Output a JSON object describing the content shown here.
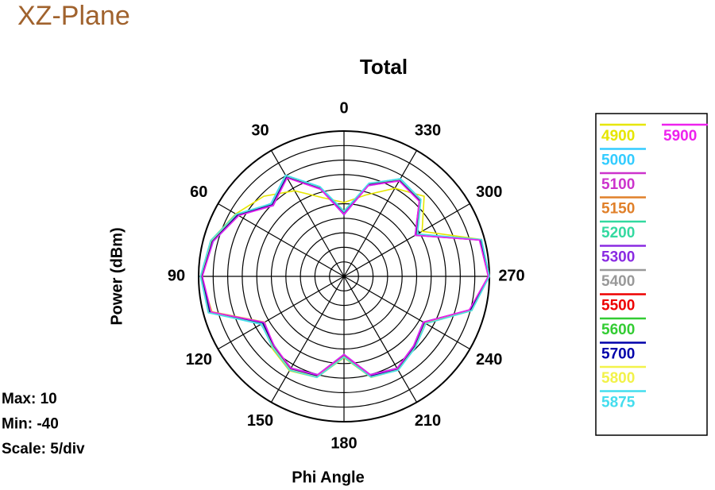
{
  "chart_data": {
    "type": "polar",
    "page_title": "XZ-Plane",
    "title": "Total",
    "ylabel": "Power  (dBm)",
    "xlabel": "Phi Angle",
    "annotations": [
      "Max: 10",
      "Min: -40",
      "Scale: 5/div"
    ],
    "angle_zero": "top",
    "angle_direction": "counterclockwise",
    "xticks": [
      0,
      30,
      60,
      90,
      120,
      150,
      180,
      210,
      240,
      270,
      300,
      330
    ],
    "ylim": [
      -40,
      10
    ],
    "yticks": [
      -40,
      -35,
      -30,
      -25,
      -20,
      -15,
      -10,
      -5,
      0,
      5,
      10
    ],
    "grid": true,
    "legend": "right",
    "x": [
      0,
      15,
      30,
      45,
      60,
      75,
      90,
      105,
      120,
      135,
      150,
      165,
      180,
      195,
      210,
      225,
      240,
      255,
      270,
      285,
      300,
      315,
      330,
      345
    ],
    "series": [
      {
        "name": "4900",
        "color": "#e6e600",
        "values": [
          -14.6,
          -12,
          -6,
          -1,
          3,
          7.5,
          9.2,
          7,
          -8.5,
          -5,
          -2.5,
          -4,
          -12,
          -4,
          -2.8,
          -5.5,
          -7.5,
          5.5,
          9.6,
          9,
          -9,
          -1,
          -5,
          -11
        ]
      },
      {
        "name": "5000",
        "color": "#33ccff",
        "values": [
          -17.5,
          -8,
          0.2,
          -4.5,
          1.8,
          6.5,
          8.8,
          8,
          -7,
          -6,
          -3.5,
          -4.8,
          -13,
          -4.8,
          -3.4,
          -6,
          -8.3,
          4.6,
          9.8,
          8.2,
          -11,
          -2.6,
          -1.2,
          -7
        ]
      },
      {
        "name": "5100",
        "color": "#cc33cc",
        "values": [
          -18.4,
          -8.9,
          -0.6,
          -5.4,
          2.6,
          7.2,
          9.3,
          7.5,
          -8.2,
          -5.4,
          -2.8,
          -4.2,
          -12.3,
          -4.2,
          -2.9,
          -5.5,
          -7.6,
          5.3,
          10,
          8.8,
          -11.7,
          -3.3,
          -1.9,
          -7.5
        ]
      },
      {
        "name": "5150",
        "color": "#e0802a",
        "values": [
          -18.2,
          -8.3,
          -0.1,
          -4.8,
          2.0,
          6.8,
          9.0,
          7.6,
          -7.5,
          -5.6,
          -3.0,
          -4.4,
          -12.5,
          -4.6,
          -3.2,
          -5.9,
          -8.1,
          4.9,
          9.9,
          8.5,
          -11.1,
          -2.9,
          -1.5,
          -7.0
        ]
      },
      {
        "name": "5200",
        "color": "#33d9a0",
        "values": [
          -17.8,
          -8.5,
          -0.3,
          -5.2,
          2.5,
          7.4,
          9.2,
          8.1,
          -7.6,
          -6.2,
          -3.3,
          -4.7,
          -12.8,
          -4.4,
          -3.0,
          -5.7,
          -7.8,
          5.2,
          10,
          8.7,
          -11.5,
          -3.1,
          -1.8,
          -7.4
        ]
      },
      {
        "name": "5300",
        "color": "#8a2be2",
        "values": [
          -18.8,
          -9.0,
          -0.8,
          -5.6,
          1.9,
          6.9,
          8.8,
          7.4,
          -8.4,
          -6.0,
          -3.6,
          -5.0,
          -13.2,
          -5.0,
          -3.5,
          -6.2,
          -8.5,
          4.7,
          9.7,
          8.3,
          -11.8,
          -3.4,
          -2.0,
          -7.7
        ]
      },
      {
        "name": "5400",
        "color": "#999999",
        "values": [
          -18.1,
          -8.7,
          -0.5,
          -5.1,
          2.2,
          7.0,
          9.0,
          7.7,
          -7.9,
          -5.9,
          -3.2,
          -4.6,
          -12.9,
          -4.5,
          -3.1,
          -5.8,
          -8.0,
          5.0,
          10,
          8.6,
          -11.4,
          -3.0,
          -1.7,
          -7.3
        ]
      },
      {
        "name": "5500",
        "color": "#ee0000",
        "values": [
          -17.9,
          -8.4,
          -0.2,
          -4.9,
          2.4,
          7.1,
          9.1,
          7.9,
          -7.7,
          -5.7,
          -3.0,
          -4.3,
          -12.6,
          -4.3,
          -3.0,
          -5.6,
          -7.9,
          5.1,
          10,
          8.7,
          -11.2,
          -2.9,
          -1.6,
          -7.1
        ]
      },
      {
        "name": "5600",
        "color": "#33cc33",
        "values": [
          -18.3,
          -8.8,
          -0.7,
          -5.3,
          2.1,
          6.8,
          8.9,
          7.6,
          -8.0,
          -5.8,
          -3.3,
          -4.6,
          -12.8,
          -4.7,
          -3.3,
          -6.0,
          -8.2,
          4.8,
          9.8,
          8.4,
          -11.6,
          -3.2,
          -1.9,
          -7.4
        ]
      },
      {
        "name": "5700",
        "color": "#0000aa",
        "values": [
          -18.5,
          -8.6,
          -0.4,
          -5.0,
          2.3,
          7.0,
          9.0,
          7.8,
          -7.8,
          -5.8,
          -3.1,
          -4.5,
          -12.7,
          -4.5,
          -3.1,
          -5.8,
          -8.0,
          5.0,
          10,
          8.6,
          -11.3,
          -3.0,
          -1.7,
          -7.2
        ]
      },
      {
        "name": "5800",
        "color": "#f2f24a",
        "values": [
          -17.6,
          -8.2,
          0.0,
          -4.7,
          2.7,
          7.3,
          9.3,
          8.2,
          -7.3,
          -5.5,
          -2.9,
          -4.2,
          -12.4,
          -4.2,
          -2.8,
          -5.4,
          -7.7,
          5.4,
          10,
          8.9,
          -10.9,
          -2.7,
          -1.4,
          -6.9
        ]
      },
      {
        "name": "5875",
        "color": "#44ddee",
        "values": [
          -17.7,
          -8.1,
          0.1,
          -4.6,
          2.8,
          7.5,
          9.4,
          8.3,
          -7.2,
          -5.3,
          -2.7,
          -4.0,
          -12.2,
          -4.1,
          -2.7,
          -5.3,
          -7.5,
          5.5,
          10,
          9.0,
          -10.8,
          -2.6,
          -1.3,
          -6.8
        ]
      },
      {
        "name": "5900",
        "color": "#ee22ee",
        "values": [
          -18.6,
          -8.9,
          -0.9,
          -5.5,
          1.8,
          6.6,
          8.7,
          7.3,
          -8.3,
          -6.1,
          -3.5,
          -4.9,
          -13.1,
          -4.9,
          -3.4,
          -6.1,
          -8.4,
          4.6,
          9.6,
          8.2,
          -11.7,
          -3.4,
          -2.1,
          -7.6
        ]
      }
    ]
  }
}
